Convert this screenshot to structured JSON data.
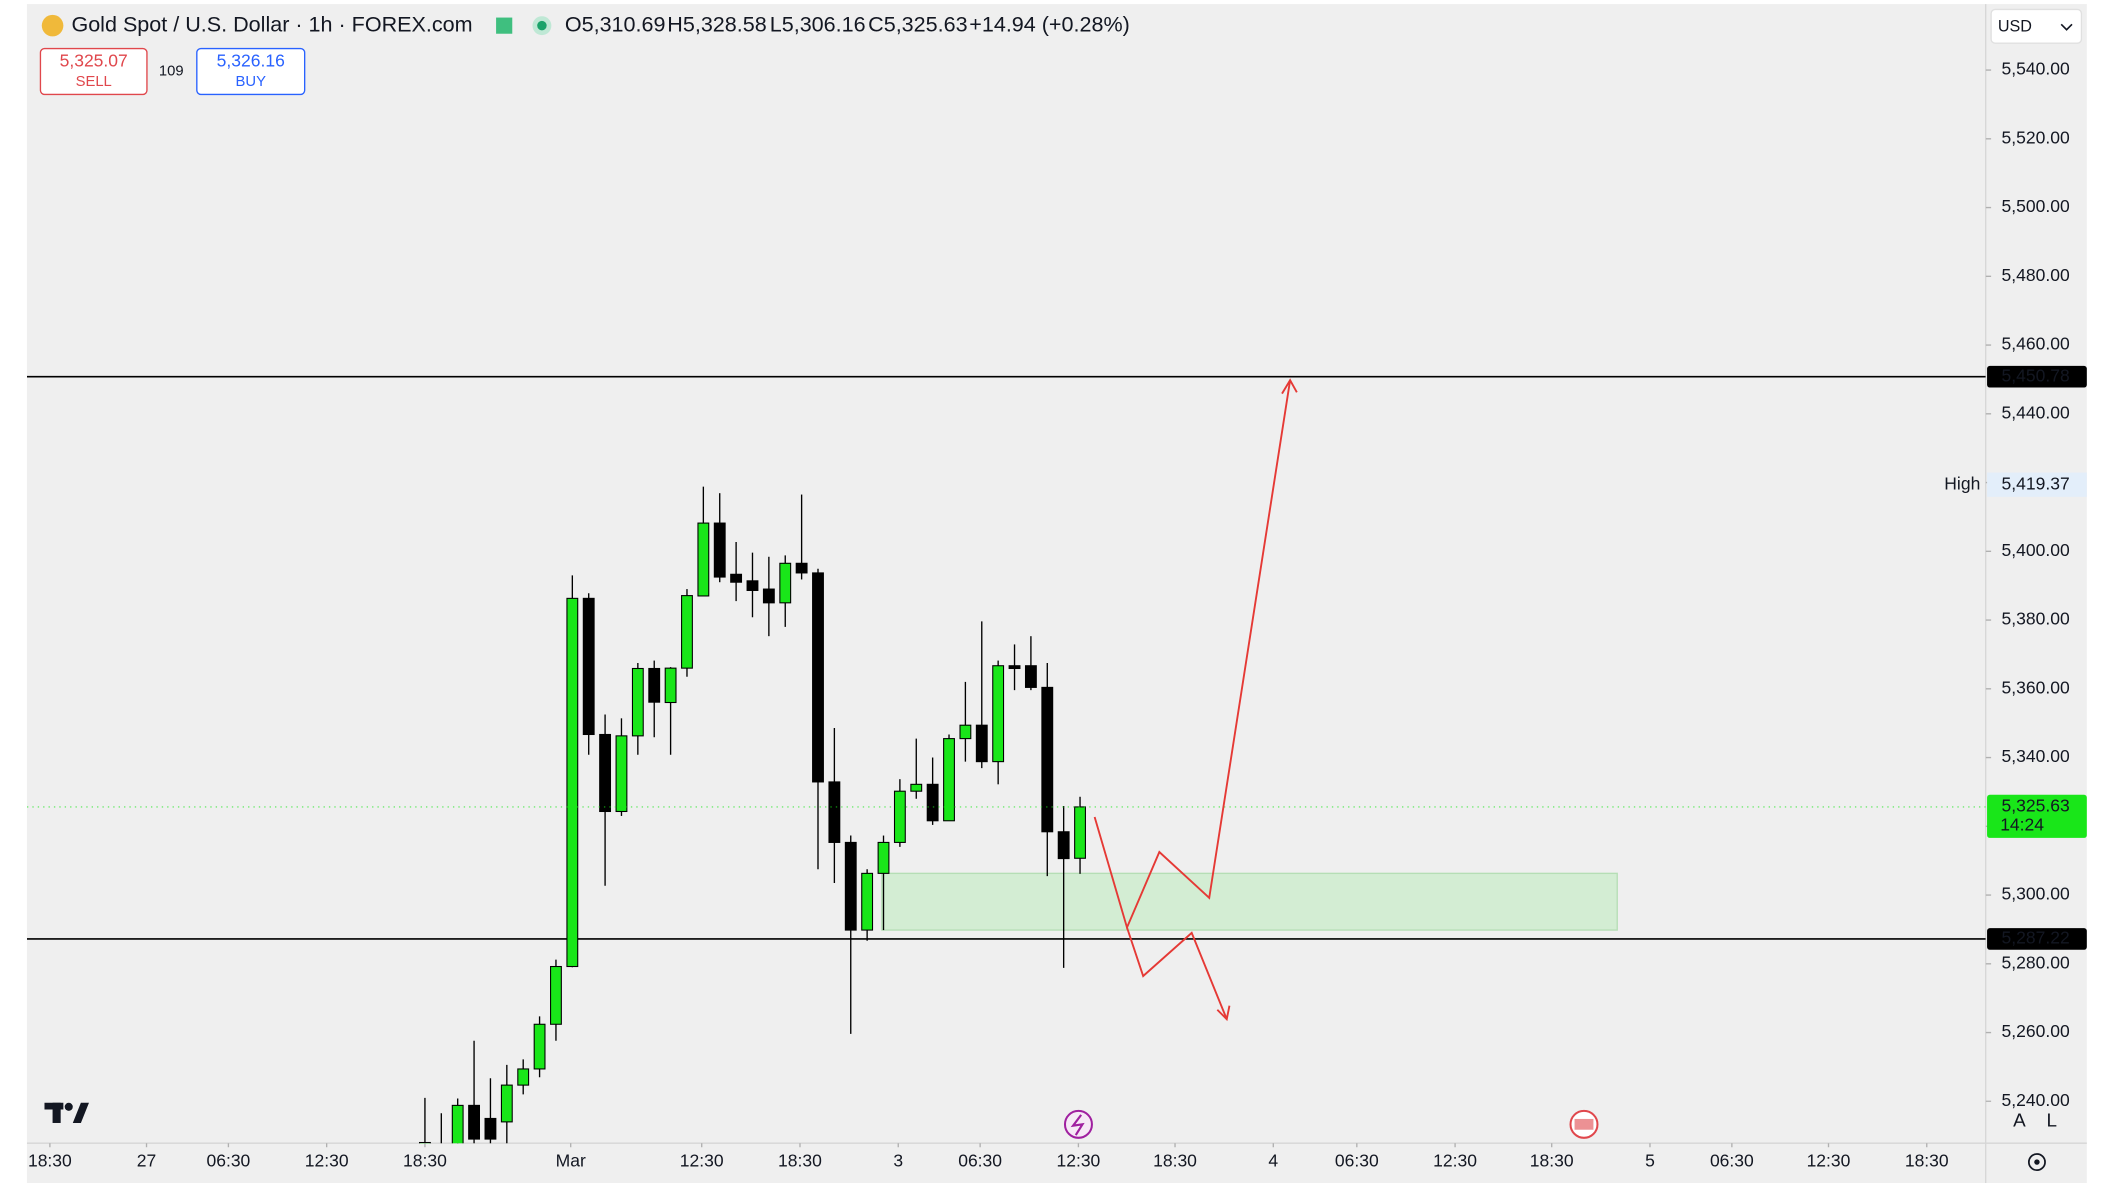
{
  "header": {
    "title": "Gold Spot / U.S. Dollar · 1h · FOREX.com",
    "ohlc": [
      "O5,310.69",
      "H5,328.58",
      "L5,306.16",
      "C5,325.63",
      "+14.94 (+0.28%)"
    ],
    "sell": {
      "price": "5,325.07",
      "label": "SELL"
    },
    "spread": "109",
    "buy": {
      "price": "5,326.16",
      "label": "BUY"
    },
    "currency": "USD",
    "axis_buttons": [
      "A",
      "L"
    ]
  },
  "chart_data": {
    "type": "candlestick",
    "x": [
      24.3,
      25.3,
      26.3,
      27.3,
      28.3,
      29.3,
      30.3,
      31.3,
      32.3,
      33.3,
      34.3,
      35.3,
      36.3,
      37.3,
      38.3,
      39.3,
      40.3,
      41.3,
      42.3,
      43.3,
      44.3,
      45.3,
      46.3,
      47.3,
      48.3,
      49.3,
      50.3,
      51.3,
      52.3,
      53.3,
      54.3,
      55.3,
      56.3,
      57.3,
      58.3,
      59.3,
      60.3,
      61.3,
      62.3,
      63.3,
      64.3
    ],
    "open": [
      5225,
      5222,
      5222,
      5238.8,
      5235,
      5234,
      5244.7,
      5249.4,
      5262.4,
      5279.2,
      5386.3,
      5346.7,
      5324.3,
      5346.3,
      5365.9,
      5356,
      5366,
      5387,
      5408.2,
      5393.3,
      5391.4,
      5389,
      5385,
      5396.5,
      5393.7,
      5332.9,
      5315.3,
      5289.8,
      5306.3,
      5315.3,
      5330.2,
      5332.2,
      5321.6,
      5345.5,
      5349.4,
      5338.8,
      5366.7,
      5366.7,
      5360.4,
      5318.4,
      5310.69
    ],
    "high": [
      5241,
      5236.5,
      5240.8,
      5257.6,
      5246.7,
      5250.6,
      5252.2,
      5264.7,
      5281.2,
      5393,
      5387.8,
      5352.5,
      5351.4,
      5367.5,
      5368.2,
      5366.3,
      5389,
      5418.8,
      5416.9,
      5402.7,
      5399.6,
      5398.4,
      5398.8,
      5416.5,
      5394.9,
      5348.6,
      5317.3,
      5307.5,
      5317.3,
      5333.7,
      5345.5,
      5340,
      5346.7,
      5362,
      5379.6,
      5368.2,
      5372.9,
      5375.3,
      5367.5,
      5325.9,
      5328.58
    ],
    "low": [
      5215,
      5215,
      5215,
      5222,
      5222,
      5225,
      5242,
      5247,
      5257.6,
      5279,
      5340.8,
      5302.7,
      5323,
      5340.8,
      5345.9,
      5340.8,
      5363.5,
      5387,
      5391,
      5385.5,
      5380.8,
      5375.3,
      5378,
      5391.8,
      5307.5,
      5303.5,
      5259.6,
      5286.7,
      5289.8,
      5314,
      5328,
      5320.4,
      5321.6,
      5338.8,
      5336.9,
      5332.2,
      5359.6,
      5359.6,
      5305.5,
      5278.8,
      5306.16
    ],
    "close": [
      5228,
      5226,
      5238.8,
      5229,
      5229,
      5244.7,
      5249.4,
      5262.4,
      5279.2,
      5386.3,
      5346.7,
      5324.3,
      5346.3,
      5365.9,
      5356.1,
      5366,
      5387.1,
      5408.2,
      5392.5,
      5391,
      5388.6,
      5385,
      5396.5,
      5393.7,
      5332.9,
      5315.3,
      5289.8,
      5306.3,
      5315.3,
      5330.2,
      5332.2,
      5321.6,
      5345.5,
      5349.4,
      5338.8,
      5366.7,
      5365.9,
      5360.4,
      5318.4,
      5310.6,
      5325.63
    ],
    "up_color": "#19e619",
    "down_color": "#000000",
    "xlim": [
      0,
      119.6
    ],
    "xticks": [
      {
        "value": 1.4,
        "label": "18:30"
      },
      {
        "value": 7.3,
        "label": "27"
      },
      {
        "value": 12.3,
        "label": "06:30"
      },
      {
        "value": 18.3,
        "label": "12:30"
      },
      {
        "value": 24.3,
        "label": "18:30"
      },
      {
        "value": 33.2,
        "label": "Mar"
      },
      {
        "value": 41.2,
        "label": "12:30"
      },
      {
        "value": 47.2,
        "label": "18:30"
      },
      {
        "value": 53.2,
        "label": "3"
      },
      {
        "value": 58.2,
        "label": "06:30"
      },
      {
        "value": 64.2,
        "label": "12:30"
      },
      {
        "value": 70.1,
        "label": "18:30"
      },
      {
        "value": 76.1,
        "label": "4"
      },
      {
        "value": 81.2,
        "label": "06:30"
      },
      {
        "value": 87.2,
        "label": "12:30"
      },
      {
        "value": 93.1,
        "label": "18:30"
      },
      {
        "value": 99.1,
        "label": "5"
      },
      {
        "value": 104.1,
        "label": "06:30"
      },
      {
        "value": 110.0,
        "label": "12:30"
      },
      {
        "value": 116.0,
        "label": "18:30"
      }
    ],
    "ylim": [
      5227.8,
      5558.4
    ],
    "yticks": [
      {
        "value": 5240,
        "label": "5,240.00"
      },
      {
        "value": 5260,
        "label": "5,260.00"
      },
      {
        "value": 5280,
        "label": "5,280.00"
      },
      {
        "value": 5300,
        "label": "5,300.00"
      },
      {
        "value": 5320,
        "label": "5,320.00"
      },
      {
        "value": 5340,
        "label": "5,340.00"
      },
      {
        "value": 5360,
        "label": "5,360.00"
      },
      {
        "value": 5380,
        "label": "5,380.00"
      },
      {
        "value": 5400,
        "label": "5,400.00"
      },
      {
        "value": 5420,
        "label": "5,420.00"
      },
      {
        "value": 5440,
        "label": "5,440.00"
      },
      {
        "value": 5460,
        "label": "5,460.00"
      },
      {
        "value": 5480,
        "label": "5,480.00"
      },
      {
        "value": 5500,
        "label": "5,500.00"
      },
      {
        "value": 5520,
        "label": "5,520.00"
      },
      {
        "value": 5540,
        "label": "5,540.00"
      }
    ],
    "hlines": [
      {
        "value": 5450.78,
        "label": "5,450.78"
      },
      {
        "value": 5287.22,
        "label": "5,287.22"
      }
    ],
    "high_marker": {
      "text": "High",
      "value": 5419.37,
      "label": "5,419.37"
    },
    "last_price": {
      "value": 5325.63,
      "label": "5,325.63",
      "countdown": "14:24"
    },
    "zone": {
      "x": [
        52.2,
        97.1
      ],
      "y": [
        5289.8,
        5306.3
      ],
      "color": "#c9ecc9"
    }
  }
}
